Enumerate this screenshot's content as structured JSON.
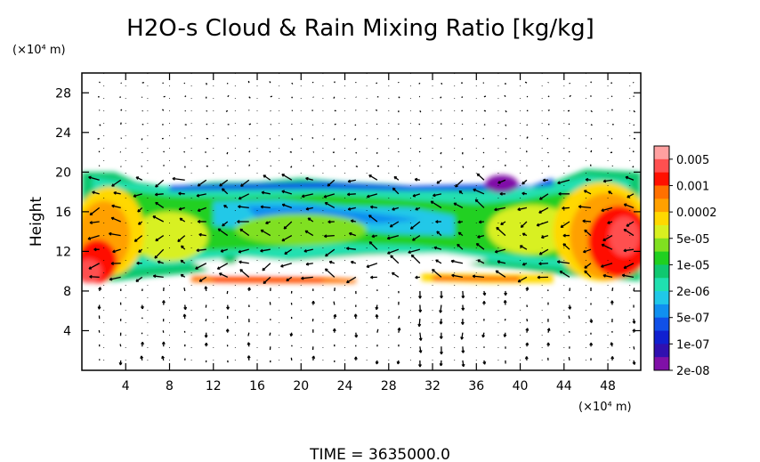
{
  "chart_data": {
    "type": "heatmap",
    "title": "H2O-s Cloud & Rain Mixing Ratio [kg/kg]",
    "ylabel": "Height",
    "y_unit": "(×10⁴ m)",
    "x_unit": "(×10⁴ m)",
    "time_label": "TIME = 3635000.0",
    "xlim": [
      0,
      51
    ],
    "ylim": [
      0,
      30
    ],
    "x_ticks": [
      "4",
      "8",
      "12",
      "16",
      "20",
      "24",
      "28",
      "32",
      "36",
      "40",
      "44",
      "48"
    ],
    "y_ticks": [
      "4",
      "8",
      "12",
      "16",
      "20",
      "24",
      "28"
    ],
    "x_tick_values": [
      4,
      8,
      12,
      16,
      20,
      24,
      28,
      32,
      36,
      40,
      44,
      48
    ],
    "y_tick_values": [
      4,
      8,
      12,
      16,
      20,
      24,
      28
    ],
    "grid": "dotted",
    "overlay": "wind vectors",
    "colorbar": {
      "labels": [
        "0.005",
        "0.001",
        "0.0002",
        "5e-05",
        "1e-05",
        "2e-06",
        "5e-07",
        "1e-07",
        "2e-08"
      ],
      "colors": [
        "#ffa0a0",
        "#ff5050",
        "#ff1000",
        "#ff7000",
        "#ffa000",
        "#ffd800",
        "#d8f020",
        "#80e020",
        "#20d020",
        "#10c870",
        "#20e0b0",
        "#20c8e8",
        "#1090f0",
        "#1050e8",
        "#1020d0",
        "#3010b0",
        "#8010a8"
      ]
    },
    "regions": [
      {
        "shape": "band",
        "x": [
          0,
          51
        ],
        "y": [
          9,
          20
        ],
        "level": "1e-05 to 2e-06"
      },
      {
        "shape": "band",
        "x": [
          12,
          36
        ],
        "y": [
          13,
          17
        ],
        "level": "1e-06"
      },
      {
        "shape": "blob",
        "x": [
          0,
          4
        ],
        "y": [
          9,
          18
        ],
        "level": "0.0002 to 0.001"
      },
      {
        "shape": "blob",
        "x": [
          37,
          51
        ],
        "y": [
          9,
          19
        ],
        "level": "0.0002 to 0.001"
      },
      {
        "shape": "layer",
        "x": [
          10,
          25
        ],
        "y": [
          8.7,
          9.4
        ],
        "level": "0.001"
      },
      {
        "shape": "layer",
        "x": [
          31,
          43
        ],
        "y": [
          8.8,
          9.6
        ],
        "level": "0.0002"
      }
    ]
  }
}
